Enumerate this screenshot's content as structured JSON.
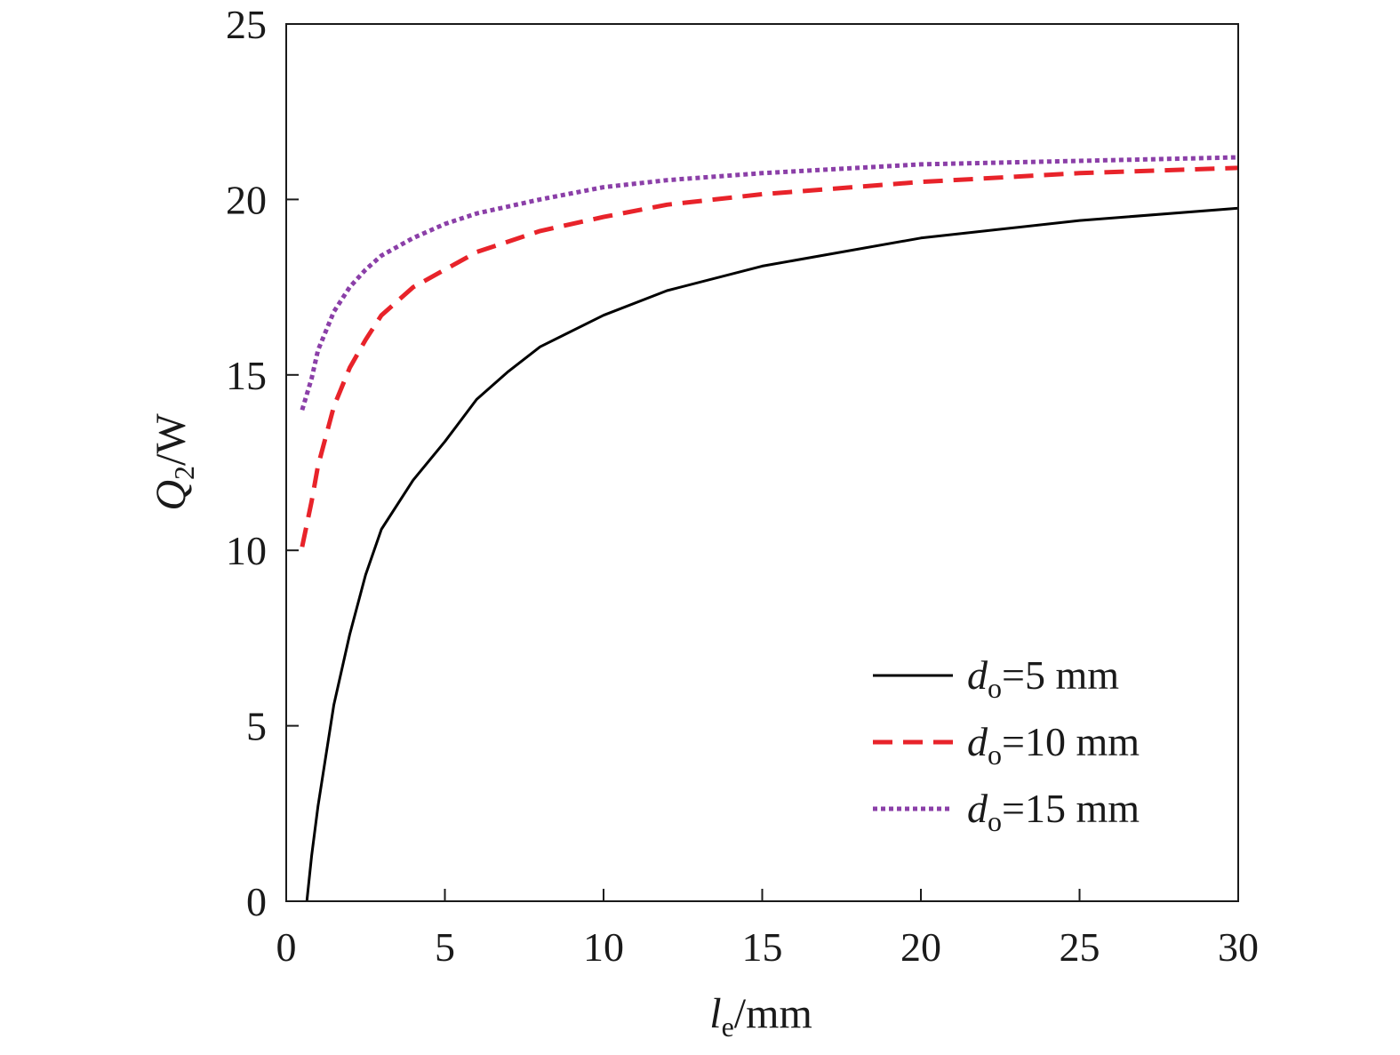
{
  "chart_data": {
    "type": "line",
    "x_axis": {
      "label_symbol": "l",
      "label_subscript": "e",
      "label_unit": "/mm",
      "range": [
        0,
        30
      ],
      "ticks": [
        0,
        5,
        10,
        15,
        20,
        25,
        30
      ],
      "tick_labels": [
        "0",
        "5",
        "10",
        "15",
        "20",
        "25",
        "30"
      ]
    },
    "y_axis": {
      "label_symbol": "Q",
      "label_subscript": "2",
      "label_unit": "/W",
      "range": [
        0,
        25
      ],
      "ticks": [
        0,
        5,
        10,
        15,
        20,
        25
      ],
      "tick_labels": [
        "0",
        "5",
        "10",
        "15",
        "20",
        "25"
      ]
    },
    "grid": false,
    "legend": {
      "position": "bottom-right"
    },
    "series": [
      {
        "legend_symbol": "d",
        "legend_subscript": "o",
        "legend_value": "=5 mm",
        "color": "#000000",
        "style": "solid",
        "x": [
          0.65,
          0.8,
          1,
          1.5,
          2,
          2.5,
          3,
          4,
          5,
          6,
          7,
          8,
          10,
          12,
          15,
          20,
          25,
          30
        ],
        "y": [
          0,
          1.3,
          2.7,
          5.6,
          7.6,
          9.3,
          10.6,
          12.0,
          13.1,
          14.3,
          15.1,
          15.8,
          16.7,
          17.4,
          18.1,
          18.9,
          19.4,
          19.75
        ]
      },
      {
        "legend_symbol": "d",
        "legend_subscript": "o",
        "legend_value": "=10 mm",
        "color": "#e8232a",
        "style": "dashed",
        "x": [
          0.5,
          0.8,
          1,
          1.5,
          2,
          2.5,
          3,
          4,
          5,
          6,
          8,
          10,
          12,
          15,
          20,
          25,
          30
        ],
        "y": [
          10.1,
          11.4,
          12.4,
          14.1,
          15.2,
          16.0,
          16.7,
          17.5,
          18.0,
          18.5,
          19.1,
          19.5,
          19.85,
          20.15,
          20.5,
          20.75,
          20.9
        ]
      },
      {
        "legend_symbol": "d",
        "legend_subscript": "o",
        "legend_value": "=15 mm",
        "color": "#8b3fa8",
        "style": "dotted",
        "x": [
          0.5,
          0.8,
          1,
          1.5,
          2,
          2.5,
          3,
          4,
          5,
          6,
          8,
          10,
          12,
          15,
          20,
          25,
          30
        ],
        "y": [
          14.0,
          14.9,
          15.7,
          16.8,
          17.5,
          18.0,
          18.4,
          18.9,
          19.3,
          19.6,
          20.0,
          20.35,
          20.55,
          20.75,
          21.0,
          21.1,
          21.2
        ]
      }
    ]
  }
}
